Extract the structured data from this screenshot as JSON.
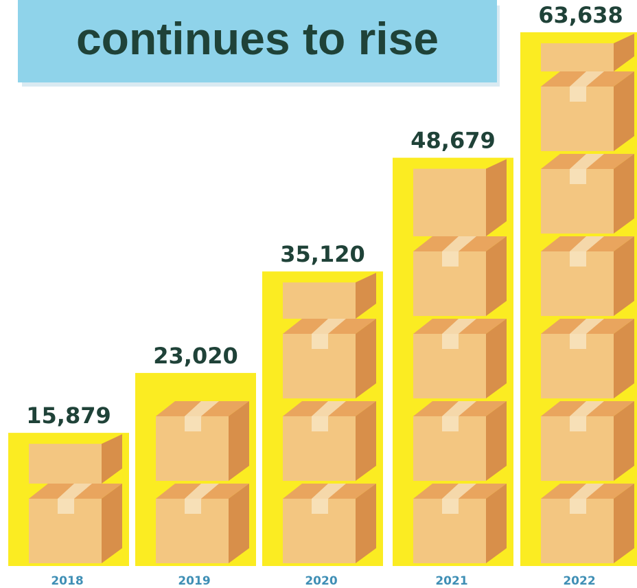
{
  "chart_data": {
    "type": "bar",
    "title": "continues to rise",
    "categories": [
      "2018",
      "2019",
      "2020",
      "2021",
      "2022"
    ],
    "values": [
      15879,
      23020,
      35120,
      48679,
      63638
    ],
    "value_labels": [
      "15,879",
      "23,020",
      "35,120",
      "48,679",
      "63,638"
    ],
    "xlabel": "",
    "ylabel": "",
    "ylim": [
      0,
      66000
    ],
    "grid": false,
    "legend": "none"
  },
  "colors": {
    "bar_fill": "#fbec22",
    "box_front": "#f3c681",
    "box_top": "#e9a55e",
    "box_side": "#d88f4a",
    "tape": "#f7e0b7",
    "title_text": "#1f4238",
    "banner": "#8fd3ea",
    "year_text": "#3f8fb5"
  },
  "icons": {
    "bar_mark": "cardboard-box-icon"
  }
}
